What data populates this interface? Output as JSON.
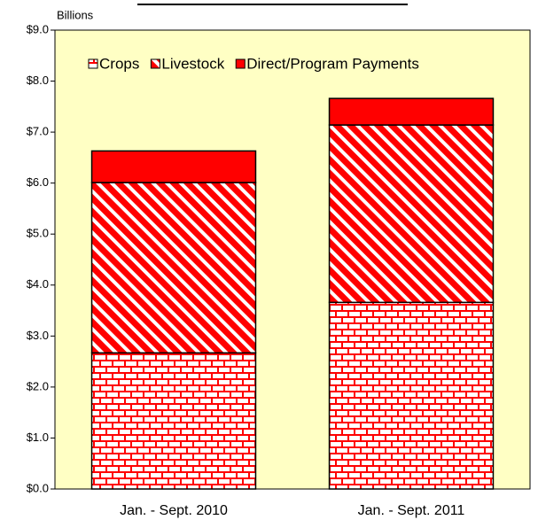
{
  "chart_data": {
    "type": "stacked_bar",
    "y_axis_label": "Billions",
    "categories": [
      "Jan. - Sept. 2010",
      "Jan. - Sept. 2011"
    ],
    "series": [
      {
        "name": "Crops",
        "color": "#ff0000",
        "pattern": "brick",
        "values": [
          2.67,
          3.66
        ]
      },
      {
        "name": "Livestock",
        "color": "#ff0000",
        "pattern": "diagonal",
        "values": [
          3.34,
          3.48
        ]
      },
      {
        "name": "Direct/Program Payments",
        "color": "#ff0000",
        "pattern": "solid",
        "values": [
          0.62,
          0.52
        ]
      }
    ],
    "ylim": [
      0,
      9
    ],
    "yticks": [
      {
        "value": 0,
        "label": "$0.0"
      },
      {
        "value": 1,
        "label": "$1.0"
      },
      {
        "value": 2,
        "label": "$2.0"
      },
      {
        "value": 3,
        "label": "$3.0"
      },
      {
        "value": 4,
        "label": "$4.0"
      },
      {
        "value": 5,
        "label": "$5.0"
      },
      {
        "value": 6,
        "label": "$6.0"
      },
      {
        "value": 7,
        "label": "$7.0"
      },
      {
        "value": 8,
        "label": "$8.0"
      },
      {
        "value": 9,
        "label": "$9.0"
      }
    ],
    "grid": false,
    "plot_background": "#ffffc4"
  }
}
